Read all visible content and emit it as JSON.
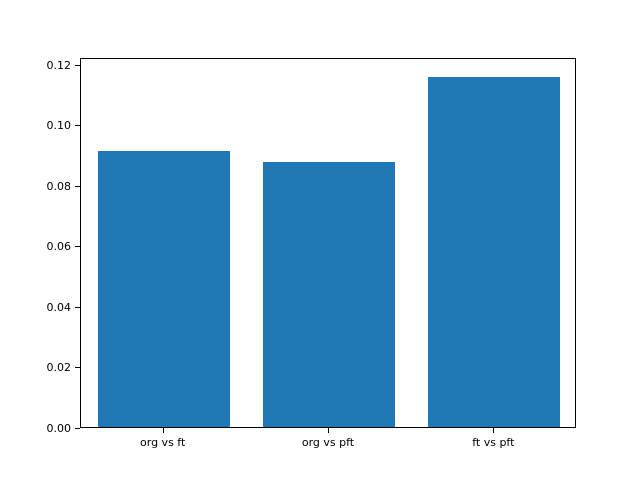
{
  "chart_data": {
    "type": "bar",
    "categories": [
      "org vs ft",
      "org vs pft",
      "ft vs pft"
    ],
    "values": [
      0.0915,
      0.0878,
      0.116
    ],
    "title": "",
    "xlabel": "",
    "ylabel": "",
    "ylim": [
      0,
      0.1225
    ],
    "yticks": [
      0.0,
      0.02,
      0.04,
      0.06,
      0.08,
      0.1,
      0.12
    ],
    "ytick_format_decimals": 2,
    "bar_color": "#1f77b4",
    "bar_width_fraction": 0.8,
    "grid": false,
    "legend": "none",
    "background_color": "#ffffff",
    "axis_color": "#000000"
  }
}
